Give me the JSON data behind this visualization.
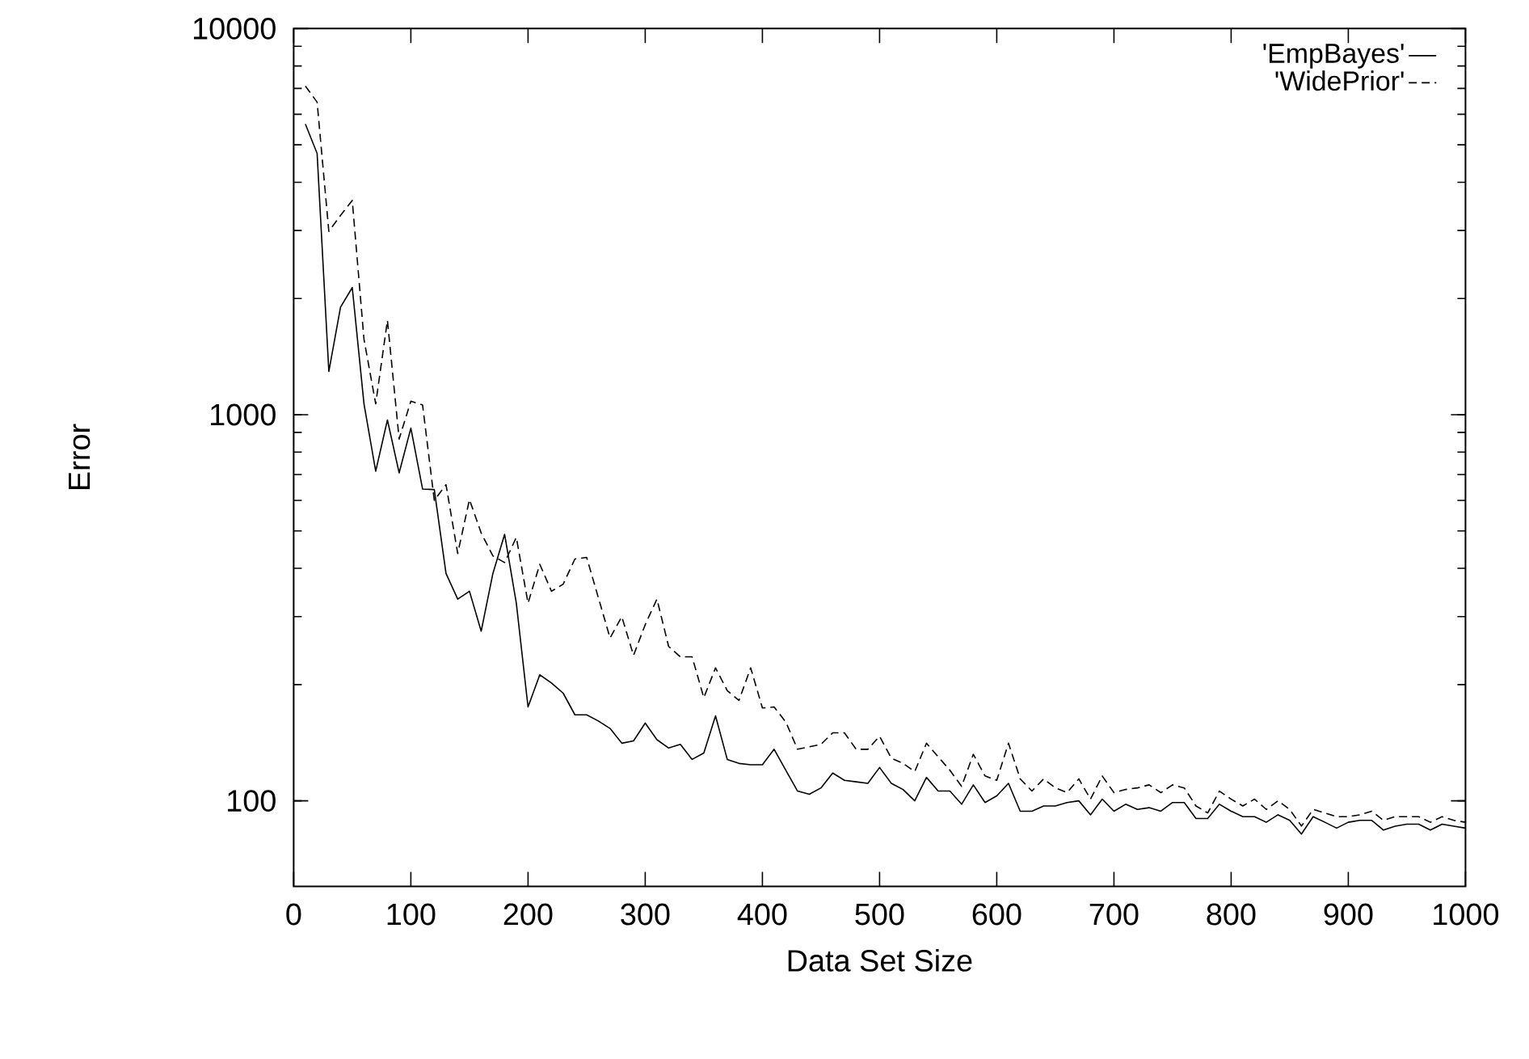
{
  "chart_data": {
    "type": "line",
    "xlabel": "Data Set Size",
    "ylabel": "Error",
    "log": "y",
    "legend": "top right",
    "xlim": [
      0,
      1000
    ],
    "ylim": [
      60,
      10000
    ],
    "xticks": [
      0,
      100,
      200,
      300,
      400,
      500,
      600,
      700,
      800,
      900,
      1000
    ],
    "yticks": [
      100,
      1000,
      10000
    ],
    "x": [
      10,
      20,
      30,
      40,
      50,
      60,
      70,
      80,
      90,
      100,
      110,
      120,
      130,
      140,
      150,
      160,
      170,
      180,
      190,
      200,
      210,
      220,
      230,
      240,
      250,
      260,
      270,
      280,
      290,
      300,
      310,
      320,
      330,
      340,
      350,
      360,
      370,
      380,
      390,
      400,
      410,
      420,
      430,
      440,
      450,
      460,
      470,
      480,
      490,
      500,
      510,
      520,
      530,
      540,
      550,
      560,
      570,
      580,
      590,
      600,
      610,
      620,
      630,
      640,
      650,
      660,
      670,
      680,
      690,
      700,
      710,
      720,
      730,
      740,
      750,
      760,
      770,
      780,
      790,
      800,
      810,
      820,
      830,
      840,
      850,
      860,
      870,
      880,
      890,
      900,
      910,
      920,
      930,
      940,
      950,
      960,
      970,
      980,
      990,
      1000
    ],
    "series": [
      {
        "name": "'EmpBayes'",
        "color": "#000000",
        "line_style": "solid",
        "values": [
          5660,
          4750,
          1294,
          1900,
          2134,
          1067,
          714,
          969,
          707,
          923,
          642,
          640,
          388,
          333,
          349,
          275,
          388,
          490,
          325,
          175,
          212,
          202,
          190,
          167,
          167,
          161,
          154,
          141,
          143,
          159,
          144,
          137,
          140,
          128,
          133,
          166,
          128,
          125,
          124,
          124,
          136,
          120,
          106,
          104,
          108,
          118,
          113,
          112,
          111,
          122,
          111,
          107,
          100,
          115,
          106,
          106,
          98,
          110,
          99,
          103,
          111,
          94,
          94,
          97,
          97,
          99,
          100,
          92,
          101,
          94,
          98,
          95,
          96,
          94,
          99,
          99,
          90,
          90,
          98,
          94,
          91,
          91,
          88,
          92,
          89,
          82,
          91,
          88,
          85,
          88,
          89,
          89,
          84,
          86,
          87,
          87,
          84,
          87,
          86,
          85
        ]
      },
      {
        "name": "'WidePrior'",
        "color": "#000000",
        "line_style": "dashed",
        "values": [
          7100,
          6450,
          2983,
          3283,
          3590,
          1568,
          1067,
          1755,
          865,
          1084,
          1060,
          600,
          659,
          437,
          603,
          494,
          431,
          414,
          481,
          325,
          410,
          349,
          364,
          423,
          427,
          336,
          264,
          300,
          238,
          286,
          333,
          251,
          236,
          236,
          185,
          221,
          193,
          182,
          221,
          174,
          175,
          160,
          136,
          138,
          140,
          150,
          150,
          136,
          136,
          147,
          129,
          125,
          119,
          141,
          130,
          120,
          109,
          132,
          116,
          113,
          141,
          114,
          106,
          114,
          108,
          105,
          114,
          101,
          116,
          105,
          107,
          108,
          110,
          105,
          110,
          108,
          97,
          93,
          106,
          101,
          97,
          101,
          95,
          100,
          95,
          86,
          95,
          93,
          91,
          91,
          92,
          94,
          89,
          91,
          91,
          91,
          88,
          91,
          89,
          88
        ]
      }
    ]
  }
}
